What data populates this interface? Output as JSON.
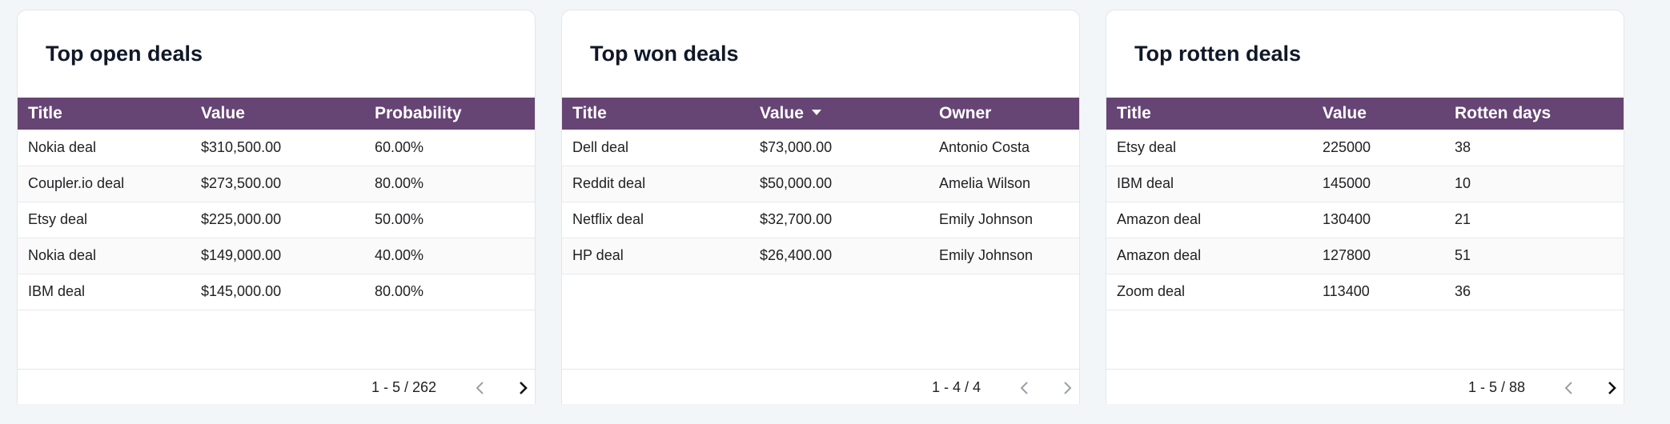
{
  "colors": {
    "header_bg": "#664474",
    "header_text": "#ffffff",
    "page_bg": "#f3f6f8",
    "card_bg": "#ffffff"
  },
  "open_deals": {
    "title": "Top open deals",
    "columns": [
      "Title",
      "Value",
      "Probability"
    ],
    "rows": [
      [
        "Nokia deal",
        "$310,500.00",
        "60.00%"
      ],
      [
        "Coupler.io deal",
        "$273,500.00",
        "80.00%"
      ],
      [
        "Etsy deal",
        "$225,000.00",
        "50.00%"
      ],
      [
        "Nokia deal",
        "$149,000.00",
        "40.00%"
      ],
      [
        "IBM deal",
        "$145,000.00",
        "80.00%"
      ]
    ],
    "page_range": "1 - 5 / 262",
    "prev_icon": "chevron-left-icon",
    "next_icon": "chevron-right-icon"
  },
  "won_deals": {
    "title": "Top won deals",
    "columns": [
      "Title",
      "Value",
      "Owner"
    ],
    "sorted_column": "Value",
    "sort_direction": "descending",
    "rows": [
      [
        "Dell deal",
        "$73,000.00",
        "Antonio Costa"
      ],
      [
        "Reddit deal",
        "$50,000.00",
        "Amelia Wilson"
      ],
      [
        "Netflix deal",
        "$32,700.00",
        "Emily Johnson"
      ],
      [
        "HP deal",
        "$26,400.00",
        "Emily Johnson"
      ]
    ],
    "page_range": "1 - 4 / 4",
    "prev_icon": "chevron-left-icon",
    "next_icon": "chevron-right-icon"
  },
  "rotten_deals": {
    "title": "Top rotten deals",
    "columns": [
      "Title",
      "Value",
      "Rotten days"
    ],
    "rows": [
      [
        "Etsy deal",
        "225000",
        "38"
      ],
      [
        "IBM deal",
        "145000",
        "10"
      ],
      [
        "Amazon deal",
        "130400",
        "21"
      ],
      [
        "Amazon deal",
        "127800",
        "51"
      ],
      [
        "Zoom deal",
        "113400",
        "36"
      ]
    ],
    "page_range": "1 - 5 / 88",
    "prev_icon": "chevron-left-icon",
    "next_icon": "chevron-right-icon"
  }
}
